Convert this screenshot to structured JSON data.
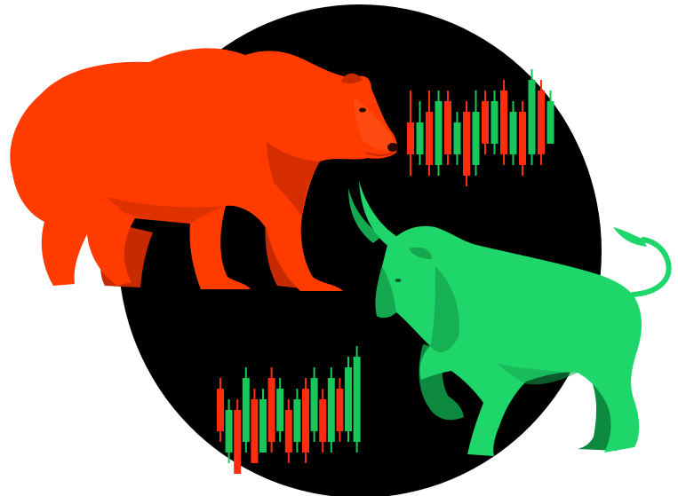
{
  "colors": {
    "background": "#ffffff",
    "circle": "#000000",
    "bear": "#ff3b00",
    "bear_shade": "#c72a00",
    "bull": "#1fd66a",
    "bull_shade": "#14a850",
    "bull_dark": "#0e8a40",
    "candle_up": "#17c75a",
    "candle_down": "#ff2d10"
  },
  "figures": {
    "bear": {
      "name": "bear",
      "icon": "bear-silhouette"
    },
    "bull": {
      "name": "bull",
      "icon": "bull-silhouette"
    }
  },
  "candles_top": [
    {
      "dir": "down",
      "open": 6,
      "close": 3,
      "high": 9,
      "low": 1
    },
    {
      "dir": "up",
      "open": 3,
      "close": 6,
      "high": 8,
      "low": 2
    },
    {
      "dir": "down",
      "open": 7,
      "close": 2,
      "high": 9,
      "low": 1
    },
    {
      "dir": "up",
      "open": 2,
      "close": 8,
      "high": 9,
      "low": 1
    },
    {
      "dir": "down",
      "open": 8,
      "close": 3,
      "high": 9,
      "low": 2
    },
    {
      "dir": "up",
      "open": 3,
      "close": 6,
      "high": 7,
      "low": 2
    },
    {
      "dir": "down",
      "open": 7,
      "close": 1,
      "high": 8,
      "low": 0
    },
    {
      "dir": "up",
      "open": 2,
      "close": 7,
      "high": 9,
      "low": 1
    },
    {
      "dir": "down",
      "open": 8,
      "close": 4,
      "high": 9,
      "low": 3
    },
    {
      "dir": "up",
      "open": 4,
      "close": 8,
      "high": 9,
      "low": 3
    },
    {
      "dir": "down",
      "open": 9,
      "close": 3,
      "high": 10,
      "low": 2
    },
    {
      "dir": "up",
      "open": 3,
      "close": 7,
      "high": 8,
      "low": 2
    },
    {
      "dir": "down",
      "open": 7,
      "close": 2,
      "high": 8,
      "low": 1
    },
    {
      "dir": "up",
      "open": 3,
      "close": 10,
      "high": 11,
      "low": 2
    },
    {
      "dir": "down",
      "open": 9,
      "close": 3,
      "high": 10,
      "low": 2
    },
    {
      "dir": "up",
      "open": 4,
      "close": 8,
      "high": 9,
      "low": 4
    }
  ],
  "candles_bottom": [
    {
      "dir": "down",
      "open": 8,
      "close": 4,
      "high": 9,
      "low": 3
    },
    {
      "dir": "up",
      "open": 2,
      "close": 6,
      "high": 7,
      "low": 1
    },
    {
      "dir": "down",
      "open": 6,
      "close": 0,
      "high": 7,
      "low": 0
    },
    {
      "dir": "up",
      "open": 3,
      "close": 9,
      "high": 10,
      "low": 2
    },
    {
      "dir": "down",
      "open": 7,
      "close": 1,
      "high": 8,
      "low": 1
    },
    {
      "dir": "up",
      "open": 2,
      "close": 7,
      "high": 8,
      "low": 2
    },
    {
      "dir": "down",
      "open": 9,
      "close": 3,
      "high": 10,
      "low": 2
    },
    {
      "dir": "up",
      "open": 4,
      "close": 8,
      "high": 9,
      "low": 3
    },
    {
      "dir": "down",
      "open": 6,
      "close": 2,
      "high": 7,
      "low": 1
    },
    {
      "dir": "up",
      "open": 3,
      "close": 7,
      "high": 8,
      "low": 2
    },
    {
      "dir": "down",
      "open": 8,
      "close": 2,
      "high": 9,
      "low": 1
    },
    {
      "dir": "up",
      "open": 4,
      "close": 9,
      "high": 10,
      "low": 3
    },
    {
      "dir": "down",
      "open": 7,
      "close": 3,
      "high": 8,
      "low": 2
    },
    {
      "dir": "up",
      "open": 3,
      "close": 9,
      "high": 10,
      "low": 2
    },
    {
      "dir": "down",
      "open": 8,
      "close": 4,
      "high": 9,
      "low": 3
    },
    {
      "dir": "up",
      "open": 4,
      "close": 10,
      "high": 11,
      "low": 3
    },
    {
      "dir": "up",
      "open": 3,
      "close": 11,
      "high": 12,
      "low": 2
    }
  ]
}
